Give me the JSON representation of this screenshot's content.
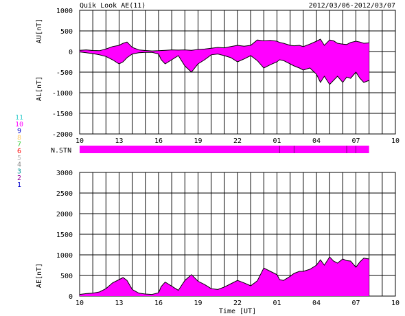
{
  "header": {
    "title": "Quik Look AE(11)",
    "date_range": "2012/03/06-2012/03/07"
  },
  "colors": {
    "fill": "#ff00ff",
    "line": "#000000",
    "grid": "#000000",
    "n_stn_tick": "#7a007a"
  },
  "station_legend": [
    {
      "label": "11",
      "color": "#33cccc"
    },
    {
      "label": "10",
      "color": "#ff00ff"
    },
    {
      "label": "9",
      "color": "#0000cc"
    },
    {
      "label": "8",
      "color": "#ffcc66"
    },
    {
      "label": "7",
      "color": "#33cc33"
    },
    {
      "label": "6",
      "color": "#ff0000"
    },
    {
      "label": "5",
      "color": "#bbbbbb"
    },
    {
      "label": "4",
      "color": "#888888"
    },
    {
      "label": "3",
      "color": "#009999"
    },
    {
      "label": "2",
      "color": "#990099"
    },
    {
      "label": "1",
      "color": "#0000cc"
    }
  ],
  "x_tick_labels": [
    "10",
    "13",
    "16",
    "19",
    "22",
    "01",
    "04",
    "07",
    "10"
  ],
  "n_stn_label": "N.STN",
  "chart_data": [
    {
      "type": "area",
      "name": "AU/AL",
      "ylabel_upper": "AU[nT]",
      "ylabel_lower": "AL[nT]",
      "ylim": [
        -2000,
        1000
      ],
      "yticks": [
        1000,
        500,
        0,
        -500,
        -1000,
        -1500,
        -2000
      ],
      "xlim_hours_after_10UT": [
        0,
        24
      ],
      "grid": true,
      "au": {
        "x": [
          0,
          0.5,
          1,
          1.5,
          2,
          2.5,
          3,
          3.3,
          3.6,
          4,
          4.5,
          5,
          5.5,
          6,
          6.5,
          7,
          7.5,
          8,
          8.5,
          9,
          9.5,
          10,
          10.5,
          11,
          11.5,
          12,
          12.5,
          13,
          13.5,
          14,
          14.5,
          15,
          15.2,
          15.5,
          16,
          16.3,
          16.7,
          17,
          17.5,
          18,
          18.3,
          18.6,
          19,
          19.3,
          19.6,
          20,
          20.3,
          20.6,
          21,
          21.3,
          21.6,
          22
        ],
        "y": [
          30,
          40,
          25,
          20,
          60,
          120,
          150,
          200,
          230,
          100,
          40,
          25,
          15,
          20,
          30,
          40,
          35,
          40,
          30,
          50,
          60,
          80,
          100,
          90,
          120,
          150,
          130,
          150,
          280,
          260,
          270,
          250,
          220,
          200,
          150,
          140,
          150,
          120,
          180,
          250,
          300,
          150,
          280,
          260,
          200,
          180,
          170,
          220,
          250,
          230,
          200,
          210
        ]
      },
      "al": {
        "x": [
          0,
          0.5,
          1,
          1.5,
          2,
          2.5,
          3,
          3.3,
          3.6,
          4,
          4.5,
          5,
          5.5,
          6,
          6.2,
          6.5,
          7,
          7.5,
          8,
          8.5,
          9,
          9.5,
          10,
          10.5,
          11,
          11.5,
          12,
          12.5,
          13,
          13.5,
          14,
          14.5,
          15,
          15.2,
          15.5,
          16,
          16.3,
          16.7,
          17,
          17.5,
          18,
          18.3,
          18.6,
          19,
          19.3,
          19.6,
          20,
          20.3,
          20.6,
          21,
          21.3,
          21.6,
          22
        ],
        "y": [
          -10,
          -30,
          -50,
          -80,
          -120,
          -200,
          -300,
          -250,
          -150,
          -60,
          -30,
          -20,
          -20,
          -60,
          -200,
          -300,
          -200,
          -100,
          -350,
          -500,
          -300,
          -200,
          -80,
          -60,
          -100,
          -150,
          -250,
          -180,
          -100,
          -220,
          -400,
          -320,
          -250,
          -200,
          -220,
          -300,
          -350,
          -400,
          -450,
          -400,
          -550,
          -750,
          -600,
          -800,
          -700,
          -600,
          -750,
          -620,
          -650,
          -500,
          -650,
          -750,
          -700
        ]
      }
    },
    {
      "type": "area",
      "name": "AE",
      "ylabel": "AE[nT]",
      "xlabel": "Time [UT]",
      "ylim": [
        0,
        3000
      ],
      "yticks": [
        3000,
        2500,
        2000,
        1500,
        1000,
        500,
        0
      ],
      "xlim_hours_after_10UT": [
        0,
        24
      ],
      "grid": true,
      "x": [
        0,
        0.5,
        1,
        1.5,
        2,
        2.5,
        3,
        3.3,
        3.6,
        4,
        4.5,
        5,
        5.5,
        6,
        6.2,
        6.5,
        7,
        7.5,
        8,
        8.5,
        9,
        9.5,
        10,
        10.5,
        11,
        11.5,
        12,
        12.5,
        13,
        13.5,
        14,
        14.5,
        15,
        15.2,
        15.5,
        16,
        16.3,
        16.7,
        17,
        17.5,
        18,
        18.3,
        18.6,
        19,
        19.3,
        19.6,
        20,
        20.3,
        20.6,
        21,
        21.3,
        21.6,
        22
      ],
      "y": [
        40,
        60,
        70,
        100,
        180,
        320,
        400,
        450,
        380,
        160,
        70,
        50,
        40,
        80,
        230,
        340,
        240,
        140,
        380,
        520,
        360,
        280,
        180,
        160,
        220,
        300,
        380,
        320,
        250,
        370,
        680,
        600,
        520,
        400,
        380,
        480,
        550,
        600,
        600,
        650,
        750,
        880,
        750,
        950,
        850,
        800,
        900,
        860,
        850,
        700,
        830,
        920,
        900
      ]
    }
  ]
}
